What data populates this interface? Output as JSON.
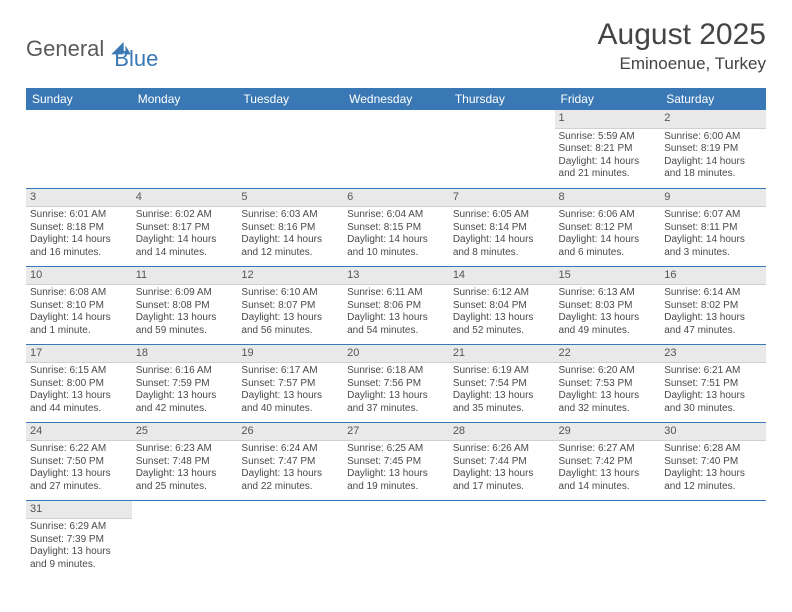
{
  "logo": {
    "part1": "General",
    "part2": "Blue"
  },
  "title": "August 2025",
  "location": "Eminoenue, Turkey",
  "colors": {
    "header_bg": "#3a78b5",
    "header_fg": "#ffffff",
    "daynum_bg": "#e9e9e9",
    "rule": "#3a78b5",
    "text": "#4a4a4a"
  },
  "weekdays": [
    "Sunday",
    "Monday",
    "Tuesday",
    "Wednesday",
    "Thursday",
    "Friday",
    "Saturday"
  ],
  "weeks": [
    [
      null,
      null,
      null,
      null,
      null,
      {
        "n": "1",
        "sr": "Sunrise: 5:59 AM",
        "ss": "Sunset: 8:21 PM",
        "d1": "Daylight: 14 hours",
        "d2": "and 21 minutes."
      },
      {
        "n": "2",
        "sr": "Sunrise: 6:00 AM",
        "ss": "Sunset: 8:19 PM",
        "d1": "Daylight: 14 hours",
        "d2": "and 18 minutes."
      }
    ],
    [
      {
        "n": "3",
        "sr": "Sunrise: 6:01 AM",
        "ss": "Sunset: 8:18 PM",
        "d1": "Daylight: 14 hours",
        "d2": "and 16 minutes."
      },
      {
        "n": "4",
        "sr": "Sunrise: 6:02 AM",
        "ss": "Sunset: 8:17 PM",
        "d1": "Daylight: 14 hours",
        "d2": "and 14 minutes."
      },
      {
        "n": "5",
        "sr": "Sunrise: 6:03 AM",
        "ss": "Sunset: 8:16 PM",
        "d1": "Daylight: 14 hours",
        "d2": "and 12 minutes."
      },
      {
        "n": "6",
        "sr": "Sunrise: 6:04 AM",
        "ss": "Sunset: 8:15 PM",
        "d1": "Daylight: 14 hours",
        "d2": "and 10 minutes."
      },
      {
        "n": "7",
        "sr": "Sunrise: 6:05 AM",
        "ss": "Sunset: 8:14 PM",
        "d1": "Daylight: 14 hours",
        "d2": "and 8 minutes."
      },
      {
        "n": "8",
        "sr": "Sunrise: 6:06 AM",
        "ss": "Sunset: 8:12 PM",
        "d1": "Daylight: 14 hours",
        "d2": "and 6 minutes."
      },
      {
        "n": "9",
        "sr": "Sunrise: 6:07 AM",
        "ss": "Sunset: 8:11 PM",
        "d1": "Daylight: 14 hours",
        "d2": "and 3 minutes."
      }
    ],
    [
      {
        "n": "10",
        "sr": "Sunrise: 6:08 AM",
        "ss": "Sunset: 8:10 PM",
        "d1": "Daylight: 14 hours",
        "d2": "and 1 minute."
      },
      {
        "n": "11",
        "sr": "Sunrise: 6:09 AM",
        "ss": "Sunset: 8:08 PM",
        "d1": "Daylight: 13 hours",
        "d2": "and 59 minutes."
      },
      {
        "n": "12",
        "sr": "Sunrise: 6:10 AM",
        "ss": "Sunset: 8:07 PM",
        "d1": "Daylight: 13 hours",
        "d2": "and 56 minutes."
      },
      {
        "n": "13",
        "sr": "Sunrise: 6:11 AM",
        "ss": "Sunset: 8:06 PM",
        "d1": "Daylight: 13 hours",
        "d2": "and 54 minutes."
      },
      {
        "n": "14",
        "sr": "Sunrise: 6:12 AM",
        "ss": "Sunset: 8:04 PM",
        "d1": "Daylight: 13 hours",
        "d2": "and 52 minutes."
      },
      {
        "n": "15",
        "sr": "Sunrise: 6:13 AM",
        "ss": "Sunset: 8:03 PM",
        "d1": "Daylight: 13 hours",
        "d2": "and 49 minutes."
      },
      {
        "n": "16",
        "sr": "Sunrise: 6:14 AM",
        "ss": "Sunset: 8:02 PM",
        "d1": "Daylight: 13 hours",
        "d2": "and 47 minutes."
      }
    ],
    [
      {
        "n": "17",
        "sr": "Sunrise: 6:15 AM",
        "ss": "Sunset: 8:00 PM",
        "d1": "Daylight: 13 hours",
        "d2": "and 44 minutes."
      },
      {
        "n": "18",
        "sr": "Sunrise: 6:16 AM",
        "ss": "Sunset: 7:59 PM",
        "d1": "Daylight: 13 hours",
        "d2": "and 42 minutes."
      },
      {
        "n": "19",
        "sr": "Sunrise: 6:17 AM",
        "ss": "Sunset: 7:57 PM",
        "d1": "Daylight: 13 hours",
        "d2": "and 40 minutes."
      },
      {
        "n": "20",
        "sr": "Sunrise: 6:18 AM",
        "ss": "Sunset: 7:56 PM",
        "d1": "Daylight: 13 hours",
        "d2": "and 37 minutes."
      },
      {
        "n": "21",
        "sr": "Sunrise: 6:19 AM",
        "ss": "Sunset: 7:54 PM",
        "d1": "Daylight: 13 hours",
        "d2": "and 35 minutes."
      },
      {
        "n": "22",
        "sr": "Sunrise: 6:20 AM",
        "ss": "Sunset: 7:53 PM",
        "d1": "Daylight: 13 hours",
        "d2": "and 32 minutes."
      },
      {
        "n": "23",
        "sr": "Sunrise: 6:21 AM",
        "ss": "Sunset: 7:51 PM",
        "d1": "Daylight: 13 hours",
        "d2": "and 30 minutes."
      }
    ],
    [
      {
        "n": "24",
        "sr": "Sunrise: 6:22 AM",
        "ss": "Sunset: 7:50 PM",
        "d1": "Daylight: 13 hours",
        "d2": "and 27 minutes."
      },
      {
        "n": "25",
        "sr": "Sunrise: 6:23 AM",
        "ss": "Sunset: 7:48 PM",
        "d1": "Daylight: 13 hours",
        "d2": "and 25 minutes."
      },
      {
        "n": "26",
        "sr": "Sunrise: 6:24 AM",
        "ss": "Sunset: 7:47 PM",
        "d1": "Daylight: 13 hours",
        "d2": "and 22 minutes."
      },
      {
        "n": "27",
        "sr": "Sunrise: 6:25 AM",
        "ss": "Sunset: 7:45 PM",
        "d1": "Daylight: 13 hours",
        "d2": "and 19 minutes."
      },
      {
        "n": "28",
        "sr": "Sunrise: 6:26 AM",
        "ss": "Sunset: 7:44 PM",
        "d1": "Daylight: 13 hours",
        "d2": "and 17 minutes."
      },
      {
        "n": "29",
        "sr": "Sunrise: 6:27 AM",
        "ss": "Sunset: 7:42 PM",
        "d1": "Daylight: 13 hours",
        "d2": "and 14 minutes."
      },
      {
        "n": "30",
        "sr": "Sunrise: 6:28 AM",
        "ss": "Sunset: 7:40 PM",
        "d1": "Daylight: 13 hours",
        "d2": "and 12 minutes."
      }
    ],
    [
      {
        "n": "31",
        "sr": "Sunrise: 6:29 AM",
        "ss": "Sunset: 7:39 PM",
        "d1": "Daylight: 13 hours",
        "d2": "and 9 minutes."
      },
      null,
      null,
      null,
      null,
      null,
      null
    ]
  ]
}
